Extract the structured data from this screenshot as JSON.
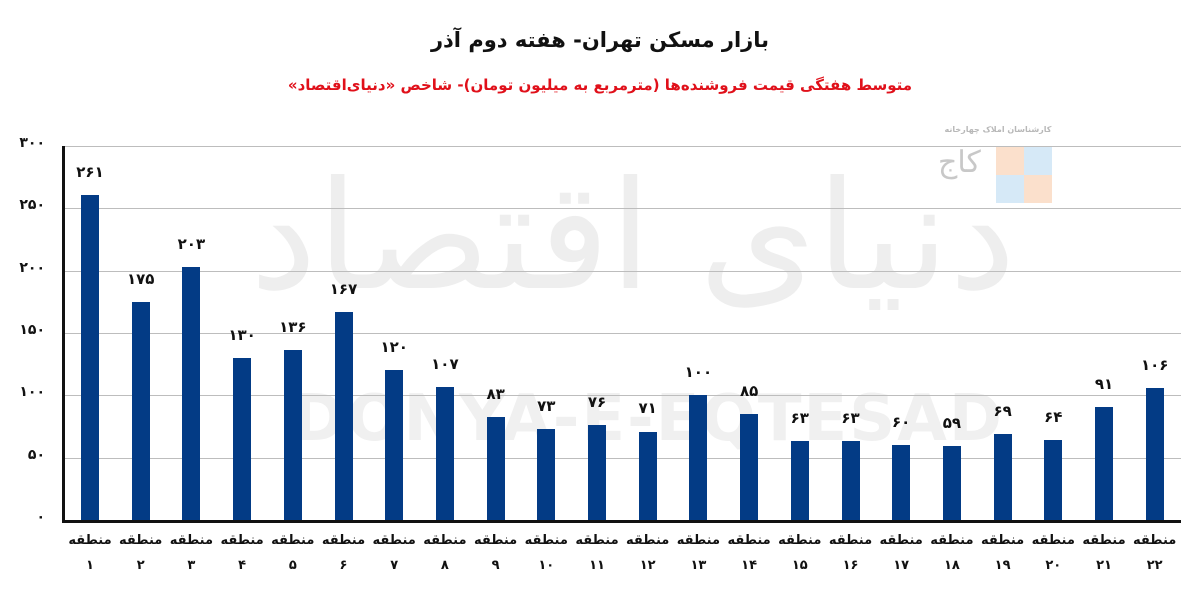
{
  "title": "بازار مسکن تهران- هفته دوم آذر",
  "subtitle": "متوسط هفتگی قیمت فروشنده‌ها (مترمربع به میلیون تومان)- شاخص «دنیای‌اقتصاد»",
  "watermark": {
    "persian": "دنیای اقتصاد",
    "latin": "DONYA-E-EQTESAD"
  },
  "logo": {
    "caption": "کارشناسان املاک چهارخانه",
    "mark": "کاج"
  },
  "colors": {
    "bar": "#033b85",
    "subtitle": "#e0101a",
    "title": "#111111",
    "grid": "#bdbdbd"
  },
  "chart_data": {
    "type": "bar",
    "title": "بازار مسکن تهران- هفته دوم آذر",
    "subtitle": "متوسط هفتگی قیمت فروشنده‌ها (مترمربع به میلیون تومان)- شاخص «دنیای‌اقتصاد»",
    "xlabel": "",
    "ylabel": "",
    "ylim": [
      0,
      300
    ],
    "yticks": [
      0,
      50,
      100,
      150,
      200,
      250,
      300
    ],
    "ytick_labels": [
      "۰",
      "۵۰",
      "۱۰۰",
      "۱۵۰",
      "۲۰۰",
      "۲۵۰",
      "۳۰۰"
    ],
    "grid": true,
    "legend": "none",
    "category_prefix": "منطقه",
    "categories": [
      "منطقه ۱",
      "منطقه ۲",
      "منطقه ۳",
      "منطقه ۴",
      "منطقه ۵",
      "منطقه ۶",
      "منطقه ۷",
      "منطقه ۸",
      "منطقه ۹",
      "منطقه ۱۰",
      "منطقه ۱۱",
      "منطقه ۱۲",
      "منطقه ۱۳",
      "منطقه ۱۴",
      "منطقه ۱۵",
      "منطقه ۱۶",
      "منطقه ۱۷",
      "منطقه ۱۸",
      "منطقه ۱۹",
      "منطقه ۲۰",
      "منطقه ۲۱",
      "منطقه ۲۲"
    ],
    "category_numbers": [
      "۱",
      "۲",
      "۳",
      "۴",
      "۵",
      "۶",
      "۷",
      "۸",
      "۹",
      "۱۰",
      "۱۱",
      "۱۲",
      "۱۳",
      "۱۴",
      "۱۵",
      "۱۶",
      "۱۷",
      "۱۸",
      "۱۹",
      "۲۰",
      "۲۱",
      "۲۲"
    ],
    "values": [
      261,
      175,
      203,
      130,
      136,
      167,
      120,
      107,
      83,
      73,
      76,
      71,
      100,
      85,
      63,
      63,
      60,
      59,
      69,
      64,
      91,
      106
    ],
    "value_labels": [
      "۲۶۱",
      "۱۷۵",
      "۲۰۳",
      "۱۳۰",
      "۱۳۶",
      "۱۶۷",
      "۱۲۰",
      "۱۰۷",
      "۸۳",
      "۷۳",
      "۷۶",
      "۷۱",
      "۱۰۰",
      "۸۵",
      "۶۳",
      "۶۳",
      "۶۰",
      "۵۹",
      "۶۹",
      "۶۴",
      "۹۱",
      "۱۰۶"
    ]
  }
}
